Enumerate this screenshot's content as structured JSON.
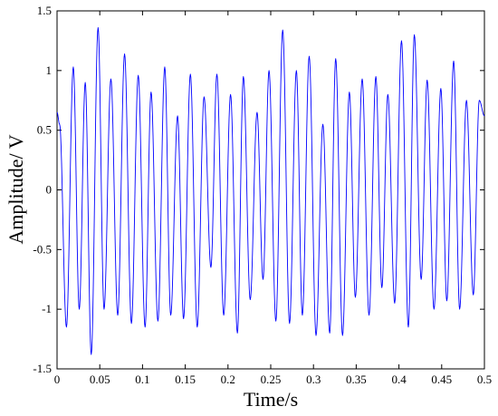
{
  "chart_data": {
    "type": "line",
    "title": "",
    "xlabel": "Time/s",
    "ylabel": "Amplitude/ V",
    "xlim": [
      0,
      0.5
    ],
    "ylim": [
      -1.5,
      1.5
    ],
    "x_ticks": [
      0,
      0.05,
      0.1,
      0.15,
      0.2,
      0.25,
      0.3,
      0.35,
      0.4,
      0.45,
      0.5
    ],
    "x_tick_labels": [
      "0",
      "0.05",
      "0.1",
      "0.15",
      "0.2",
      "0.25",
      "0.3",
      "0.35",
      "0.4",
      "0.45",
      "0.5"
    ],
    "y_ticks": [
      -1.5,
      -1,
      -0.5,
      0,
      0.5,
      1,
      1.5
    ],
    "y_tick_labels": [
      "-1.5",
      "-1",
      "-0.5",
      "0",
      "0.5",
      "1",
      "1.5"
    ],
    "grid": false,
    "legend": "none",
    "series": [
      {
        "color": "#0000ff",
        "x": [
          0,
          0.003,
          0.011,
          0.019,
          0.026,
          0.033,
          0.04,
          0.048,
          0.055,
          0.063,
          0.071,
          0.079,
          0.087,
          0.095,
          0.103,
          0.11,
          0.118,
          0.126,
          0.133,
          0.141,
          0.148,
          0.156,
          0.164,
          0.172,
          0.18,
          0.187,
          0.195,
          0.203,
          0.211,
          0.218,
          0.226,
          0.234,
          0.241,
          0.248,
          0.256,
          0.264,
          0.272,
          0.28,
          0.287,
          0.295,
          0.303,
          0.311,
          0.319,
          0.326,
          0.334,
          0.342,
          0.349,
          0.357,
          0.365,
          0.373,
          0.38,
          0.387,
          0.395,
          0.403,
          0.411,
          0.418,
          0.426,
          0.433,
          0.441,
          0.449,
          0.456,
          0.464,
          0.471,
          0.479,
          0.487,
          0.494,
          0.5
        ],
        "y": [
          0.65,
          0.55,
          -1.15,
          1.03,
          -1.0,
          0.9,
          -1.38,
          1.36,
          -1.0,
          0.93,
          -1.05,
          1.14,
          -1.12,
          0.96,
          -1.15,
          0.82,
          -1.1,
          1.03,
          -1.05,
          0.62,
          -1.08,
          0.97,
          -1.15,
          0.78,
          -0.65,
          0.97,
          -1.05,
          0.8,
          -1.2,
          0.95,
          -0.92,
          0.65,
          -0.75,
          1.0,
          -1.1,
          1.34,
          -1.12,
          1.0,
          -1.05,
          1.12,
          -1.22,
          0.55,
          -1.2,
          1.1,
          -1.22,
          0.82,
          -0.9,
          0.93,
          -1.05,
          0.95,
          -0.82,
          0.8,
          -0.95,
          1.25,
          -1.15,
          1.3,
          -0.75,
          0.92,
          -1.0,
          0.85,
          -0.93,
          1.08,
          -1.0,
          0.75,
          -0.88,
          0.75,
          0.62
        ]
      }
    ]
  }
}
